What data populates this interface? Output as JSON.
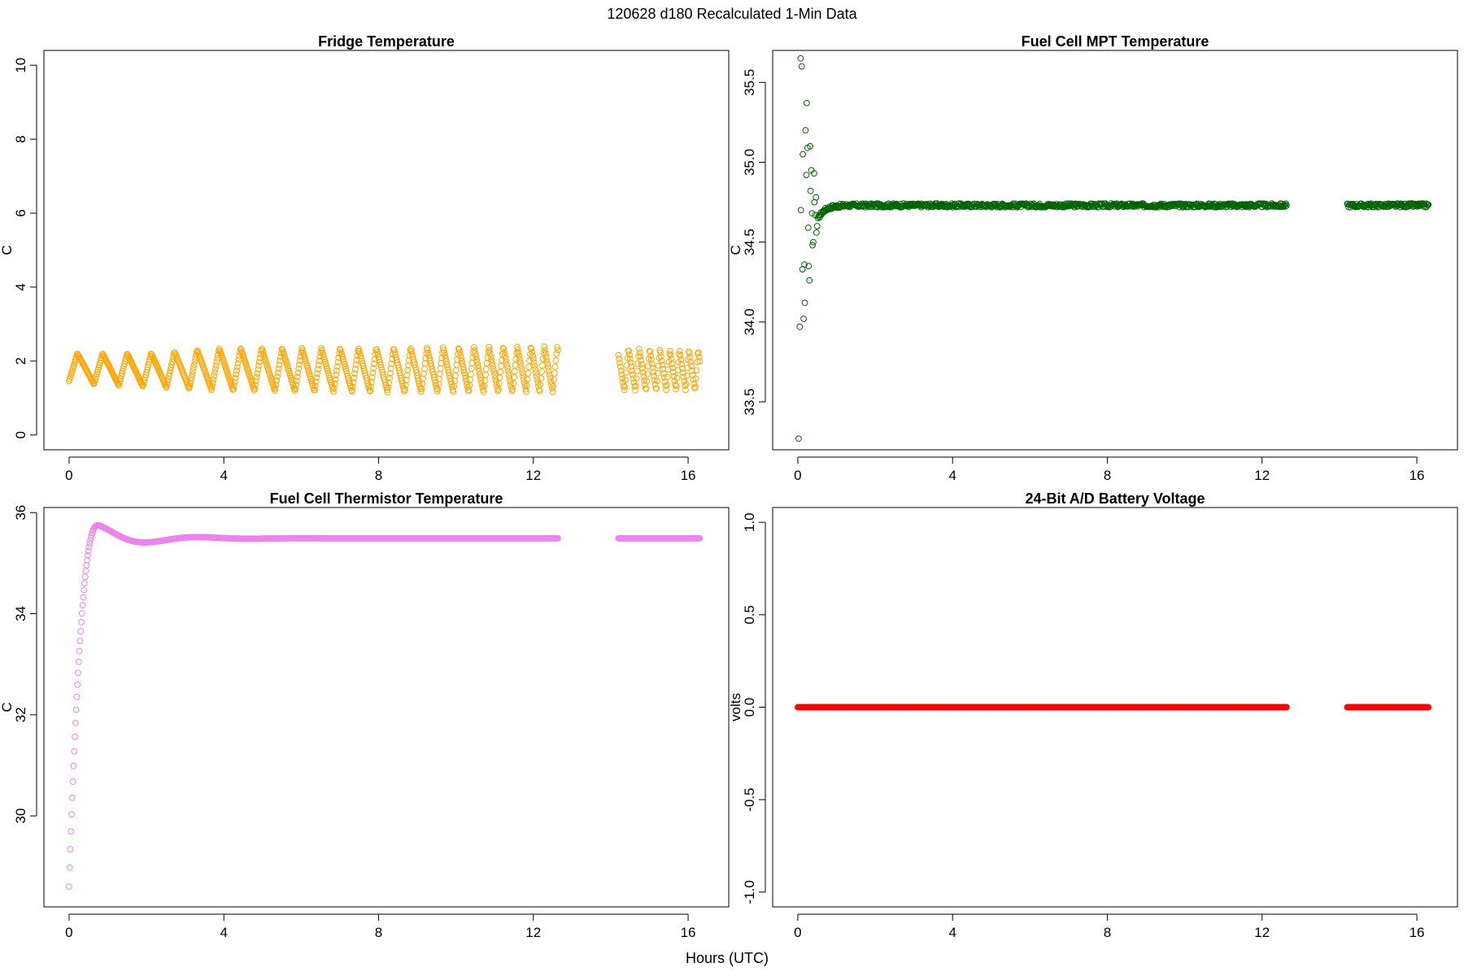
{
  "figure": {
    "title": "120628   d180   Recalculated 1-Min Data",
    "shared_xlabel": "Hours (UTC)"
  },
  "chart_data": [
    {
      "type": "scatter",
      "title": "Fridge Temperature",
      "xlabel": "",
      "ylabel": "C",
      "xlim": [
        -0.65,
        17.05
      ],
      "ylim": [
        -0.4,
        10.4
      ],
      "xticks": [
        0,
        4,
        8,
        12,
        16
      ],
      "yticks": [
        0,
        2,
        4,
        6,
        8,
        10
      ],
      "ytick_labels": [
        "0",
        "2",
        "4",
        "6",
        "8",
        "10"
      ],
      "color": "#FFA500",
      "gap_hours": [
        12.65,
        14.2
      ],
      "series": [
        {
          "name": "Fridge Temperature",
          "pattern": "sawtooth cycling between low and high values",
          "x_range": [
            0,
            16.3
          ],
          "low": [
            1.4,
            1.3,
            1.2,
            1.15,
            1.15,
            1.2
          ],
          "high": [
            2.2,
            2.2,
            2.35,
            2.35,
            2.4,
            2.3
          ],
          "low_at_hours": [
            0,
            2,
            4,
            8,
            12,
            16.3
          ],
          "cycle_minutes_start": 40,
          "cycle_minutes_end": 14
        }
      ]
    },
    {
      "type": "scatter",
      "title": "Fuel Cell MPT Temperature",
      "xlabel": "",
      "ylabel": "C",
      "xlim": [
        -0.65,
        17.05
      ],
      "ylim": [
        33.2,
        35.7
      ],
      "xticks": [
        0,
        4,
        8,
        12,
        16
      ],
      "yticks": [
        33.5,
        34.0,
        34.5,
        35.0,
        35.5
      ],
      "ytick_labels": [
        "33.5",
        "34.0",
        "34.5",
        "35.0",
        "35.5"
      ],
      "color": "#006400",
      "gap_hours": [
        12.65,
        14.2
      ],
      "series": [
        {
          "name": "Fuel Cell MPT Temperature",
          "start_points": [
            [
              0.02,
              33.27
            ],
            [
              0.05,
              33.97
            ],
            [
              0.07,
              35.65
            ],
            [
              0.08,
              34.7
            ],
            [
              0.1,
              35.6
            ],
            [
              0.12,
              34.33
            ],
            [
              0.13,
              35.05
            ],
            [
              0.15,
              34.02
            ],
            [
              0.17,
              34.36
            ],
            [
              0.18,
              34.12
            ],
            [
              0.2,
              35.2
            ],
            [
              0.22,
              34.92
            ],
            [
              0.23,
              35.37
            ],
            [
              0.25,
              35.09
            ],
            [
              0.27,
              34.59
            ],
            [
              0.28,
              34.35
            ],
            [
              0.3,
              34.26
            ],
            [
              0.32,
              35.1
            ],
            [
              0.33,
              34.82
            ],
            [
              0.35,
              34.95
            ],
            [
              0.37,
              34.68
            ],
            [
              0.38,
              34.48
            ],
            [
              0.4,
              34.5
            ],
            [
              0.42,
              34.93
            ],
            [
              0.43,
              34.75
            ],
            [
              0.45,
              34.67
            ],
            [
              0.47,
              34.78
            ],
            [
              0.48,
              34.56
            ],
            [
              0.5,
              34.6
            ],
            [
              0.52,
              34.65
            ]
          ],
          "steady_value": 34.73,
          "steady_spread": 0.012,
          "x_range": [
            0,
            16.3
          ]
        }
      ]
    },
    {
      "type": "scatter",
      "title": "Fuel Cell Thermistor Temperature",
      "xlabel": "",
      "ylabel": "C",
      "xlim": [
        -0.65,
        17.05
      ],
      "ylim": [
        28.2,
        36.1
      ],
      "xticks": [
        0,
        4,
        8,
        12,
        16
      ],
      "yticks": [
        30,
        32,
        34,
        36
      ],
      "ytick_labels": [
        "30",
        "32",
        "34",
        "36"
      ],
      "color": "#EE82EE",
      "gap_hours": [
        12.65,
        14.2
      ],
      "series": [
        {
          "name": "Fuel Cell Thermistor Temperature",
          "start_value": 28.6,
          "peak_value": 35.75,
          "peak_hour": 0.75,
          "steady_value": 35.49,
          "x_range": [
            0,
            16.3
          ]
        }
      ]
    },
    {
      "type": "scatter",
      "title": "24-Bit A/D Battery Voltage",
      "xlabel": "",
      "ylabel": "volts",
      "xlim": [
        -0.65,
        17.05
      ],
      "ylim": [
        -1.08,
        1.08
      ],
      "xticks": [
        0,
        4,
        8,
        12,
        16
      ],
      "yticks": [
        -1.0,
        -0.5,
        0.0,
        0.5,
        1.0
      ],
      "ytick_labels": [
        "-1.0",
        "-0.5",
        "0.0",
        "0.5",
        "1.0"
      ],
      "color": "#FF0000",
      "gap_hours": [
        12.65,
        14.2
      ],
      "series": [
        {
          "name": "24-Bit A/D Battery Voltage",
          "constant_value": 0.0,
          "x_range": [
            0,
            16.3
          ]
        }
      ]
    }
  ]
}
